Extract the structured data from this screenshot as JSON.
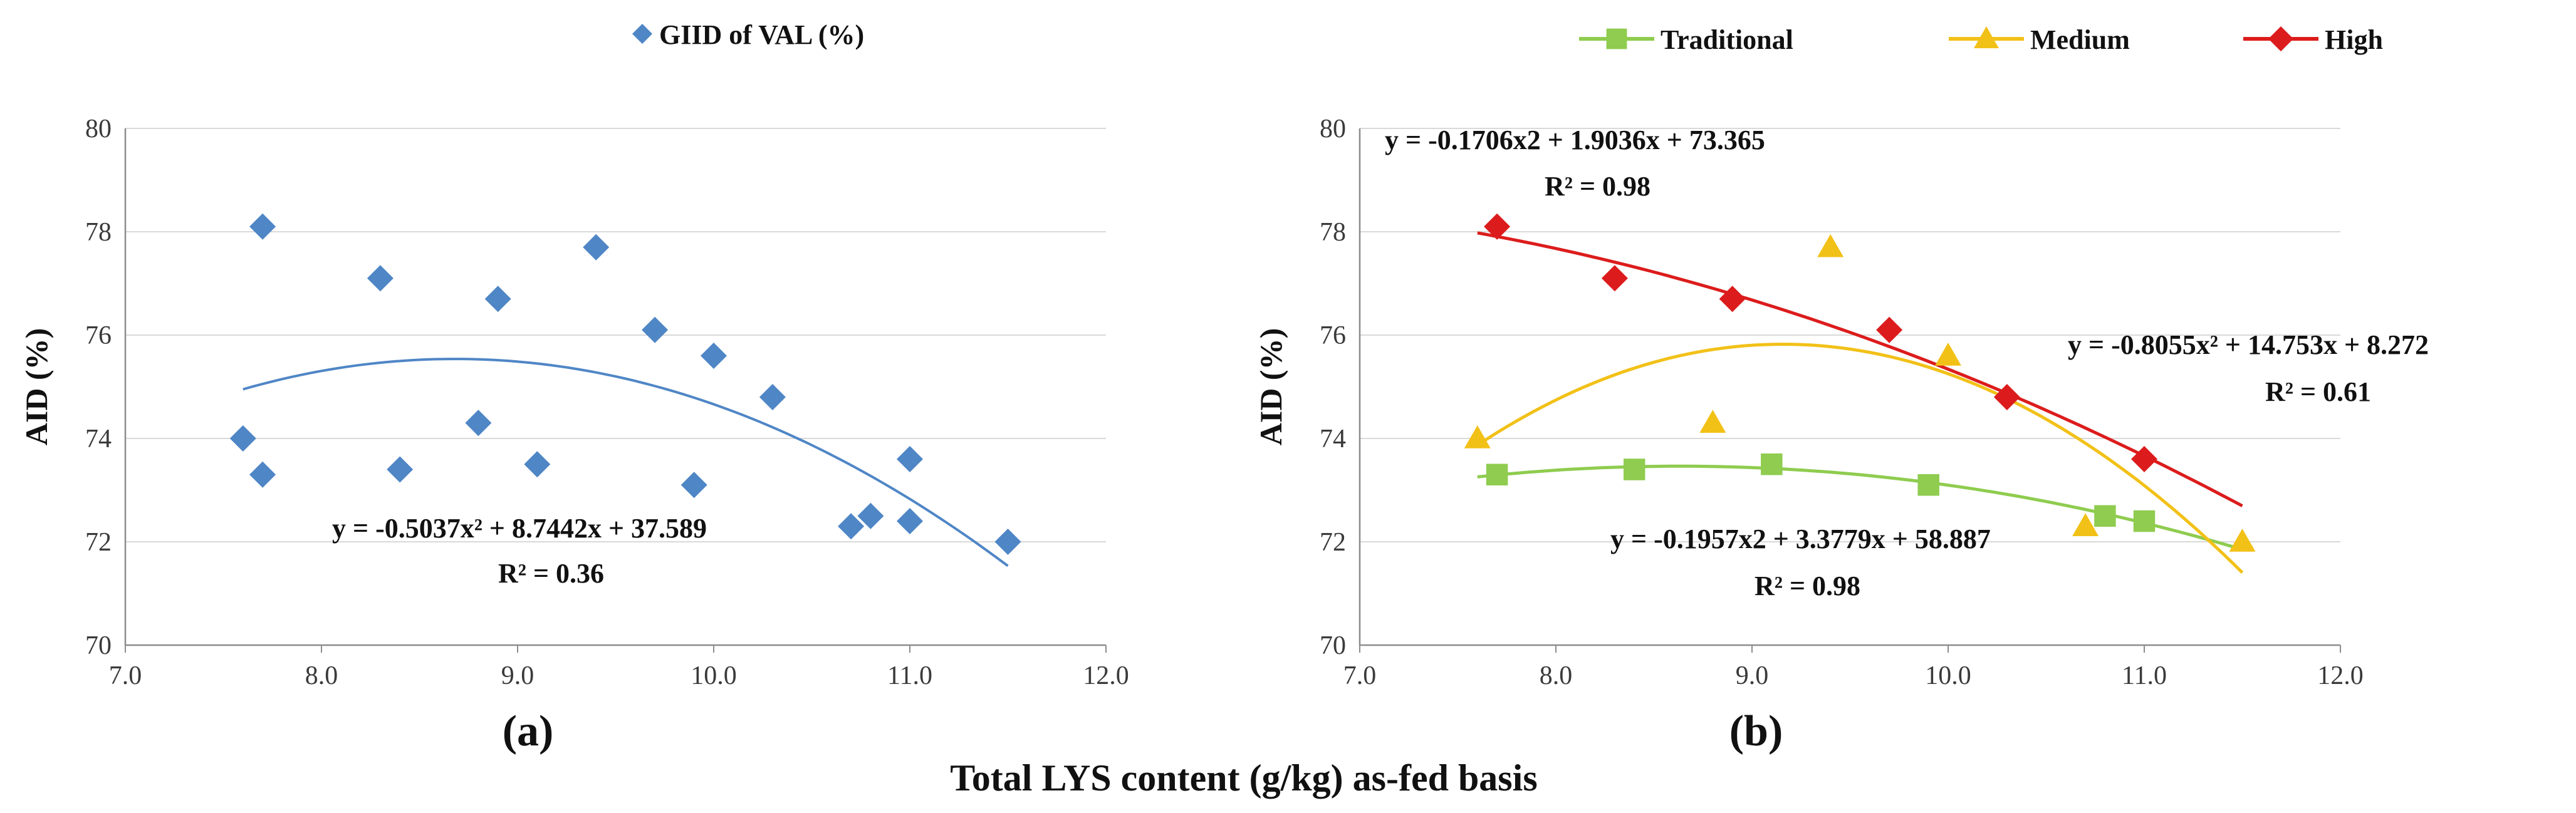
{
  "chart_data": [
    {
      "type": "scatter",
      "panel_label": "(a)",
      "ylabel": "AID (%)",
      "xlim": [
        7.0,
        12.0
      ],
      "ylim": [
        70,
        80
      ],
      "xticks": [
        "7.0",
        "8.0",
        "9.0",
        "10.0",
        "11.0",
        "12.0"
      ],
      "yticks": [
        "70",
        "72",
        "74",
        "76",
        "78",
        "80"
      ],
      "legend": "GIID of VAL (%)",
      "series": [
        {
          "name": "GIID of VAL (%)",
          "color": "#4f86c6",
          "marker": "diamond",
          "points": [
            [
              7.6,
              74.0
            ],
            [
              7.7,
              78.1
            ],
            [
              7.7,
              73.3
            ],
            [
              8.3,
              77.1
            ],
            [
              8.4,
              73.4
            ],
            [
              8.8,
              74.3
            ],
            [
              8.9,
              76.7
            ],
            [
              9.1,
              73.5
            ],
            [
              9.4,
              77.7
            ],
            [
              9.7,
              76.1
            ],
            [
              9.9,
              73.1
            ],
            [
              10.0,
              75.6
            ],
            [
              10.3,
              74.8
            ],
            [
              10.7,
              72.3
            ],
            [
              10.8,
              72.5
            ],
            [
              11.0,
              73.6
            ],
            [
              11.0,
              72.4
            ],
            [
              11.5,
              72.0
            ]
          ],
          "trend": {
            "a": -0.5037,
            "b": 8.7442,
            "c": 37.589,
            "x_range": [
              7.6,
              11.5
            ],
            "color": "#4f86c6"
          }
        }
      ],
      "annotations": [
        {
          "equation": "y = -0.5037x² + 8.7442x + 37.589",
          "r2": "R² = 0.36"
        }
      ]
    },
    {
      "type": "scatter",
      "panel_label": "(b)",
      "ylabel": "AID (%)",
      "xlim": [
        7.0,
        12.0
      ],
      "ylim": [
        70,
        80
      ],
      "xticks": [
        "7.0",
        "8.0",
        "9.0",
        "10.0",
        "11.0",
        "12.0"
      ],
      "yticks": [
        "70",
        "72",
        "74",
        "76",
        "78",
        "80"
      ],
      "series": [
        {
          "name": "Traditional",
          "color": "#8fcc4f",
          "marker": "square",
          "points": [
            [
              7.7,
              73.3
            ],
            [
              8.4,
              73.4
            ],
            [
              9.1,
              73.5
            ],
            [
              9.9,
              73.1
            ],
            [
              10.8,
              72.5
            ],
            [
              11.0,
              72.4
            ]
          ],
          "trend": {
            "a": -0.1957,
            "b": 3.3779,
            "c": 58.887,
            "x_range": [
              7.6,
              11.5
            ],
            "color": "#8fcc4f"
          }
        },
        {
          "name": "Medium",
          "color": "#f2c118",
          "marker": "triangle",
          "points": [
            [
              7.6,
              74.0
            ],
            [
              8.8,
              74.3
            ],
            [
              9.4,
              77.7
            ],
            [
              10.0,
              75.6
            ],
            [
              10.7,
              72.3
            ],
            [
              11.5,
              72.0
            ]
          ],
          "trend": {
            "a": -0.8055,
            "b": 14.753,
            "c": 8.272,
            "x_range": [
              7.6,
              11.5
            ],
            "color": "#f2c118"
          }
        },
        {
          "name": "High",
          "color": "#dc1c1c",
          "marker": "diamond",
          "points": [
            [
              7.7,
              78.1
            ],
            [
              8.3,
              77.1
            ],
            [
              8.9,
              76.7
            ],
            [
              9.7,
              76.1
            ],
            [
              10.3,
              74.8
            ],
            [
              11.0,
              73.6
            ]
          ],
          "trend": {
            "a": -0.1706,
            "b": 1.9036,
            "c": 73.365,
            "x_range": [
              7.6,
              11.5
            ],
            "color": "#dc1c1c"
          }
        }
      ],
      "annotations": [
        {
          "equation": "y = -0.1706x2 + 1.9036x + 73.365",
          "r2": "R² = 0.98"
        },
        {
          "equation": "y = -0.8055x² + 14.753x + 8.272",
          "r2": "R² = 0.61"
        },
        {
          "equation": "y = -0.1957x2 + 3.3779x + 58.887",
          "r2": "R² = 0.98"
        }
      ]
    }
  ],
  "common_xlabel": "Total LYS content (g/kg) as-fed basis"
}
